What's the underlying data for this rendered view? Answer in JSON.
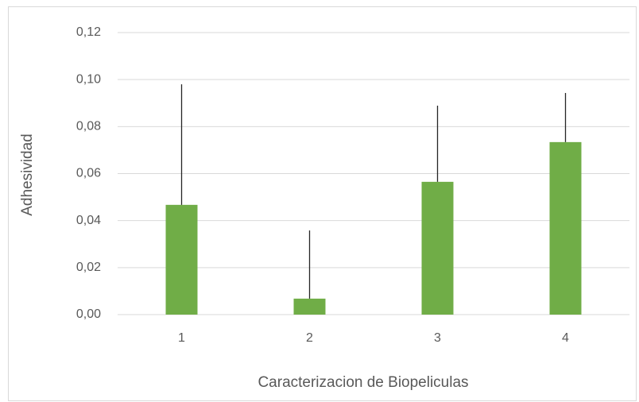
{
  "chart_data": {
    "type": "bar",
    "x_label": "Caracterizacion de Biopeliculas",
    "y_label": "Adhesividad",
    "categories": [
      "1",
      "2",
      "3",
      "4"
    ],
    "values": [
      0.0467,
      0.0068,
      0.0565,
      0.0734
    ],
    "errors": [
      0.0513,
      0.029,
      0.0324,
      0.0209
    ],
    "color": "#70ad47",
    "ylim": [
      0,
      0.12
    ],
    "yticks": [
      {
        "value": 0,
        "label": "0,00"
      },
      {
        "value": 0.02,
        "label": "0,02"
      },
      {
        "value": 0.04,
        "label": "0,04"
      },
      {
        "value": 0.06,
        "label": "0,06"
      },
      {
        "value": 0.08,
        "label": "0,08"
      },
      {
        "value": 0.1,
        "label": "0,10"
      },
      {
        "value": 0.12,
        "label": "0,12"
      }
    ],
    "grid": true
  }
}
